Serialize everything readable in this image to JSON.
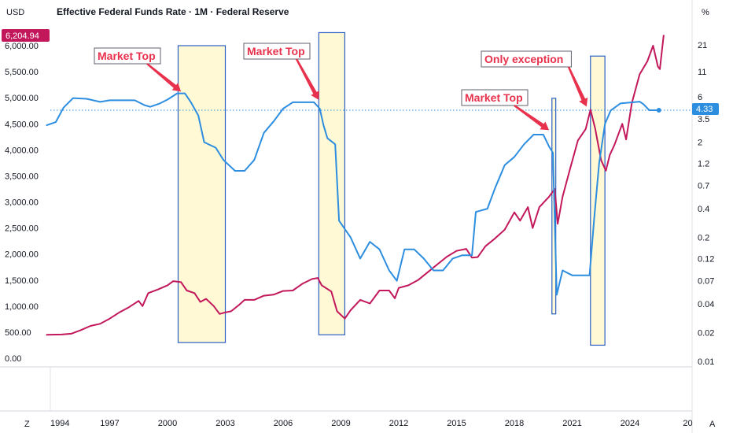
{
  "header": {
    "left_unit": "USD",
    "title": "Effective Federal Funds Rate · 1M · Federal Reserve",
    "right_unit": "%"
  },
  "badges": {
    "left_value": "6,204.94",
    "right_value": "4.33"
  },
  "bottom": {
    "left_icon": "Z",
    "right_icon": "A"
  },
  "colors": {
    "spx": "#c2185b",
    "fed": "#2d8ee0",
    "highlight_fill": "#fff9d6",
    "highlight_stroke": "#2a5fc4",
    "callout": "#e8314c"
  },
  "chart_data": {
    "type": "line",
    "title": "Effective Federal Funds Rate · 1M · Federal Reserve",
    "x_ticks": [
      "1994",
      "1997",
      "2000",
      "2003",
      "2006",
      "2009",
      "2012",
      "2015",
      "2018",
      "2021",
      "2024",
      "20"
    ],
    "left_axis": {
      "unit": "USD",
      "ticks": [
        "6,000.00",
        "5,500.00",
        "5,000.00",
        "4,500.00",
        "4,000.00",
        "3,500.00",
        "3,000.00",
        "2,500.00",
        "2,000.00",
        "1,500.00",
        "1,000.00",
        "500.00",
        "0.00"
      ],
      "range": [
        0,
        6000
      ]
    },
    "right_axis": {
      "unit": "%",
      "scale": "log",
      "ticks": [
        "21",
        "11",
        "6",
        "3.5",
        "2",
        "1.2",
        "0.7",
        "0.4",
        "0.2",
        "0.12",
        "0.07",
        "0.04",
        "0.02",
        "0.01"
      ]
    },
    "series": [
      {
        "axis": "left",
        "color": "#c2185b",
        "points": [
          [
            1993.7,
            450
          ],
          [
            1994.5,
            455
          ],
          [
            1995.0,
            470
          ],
          [
            1995.5,
            540
          ],
          [
            1996.0,
            620
          ],
          [
            1996.5,
            660
          ],
          [
            1997.0,
            760
          ],
          [
            1997.5,
            880
          ],
          [
            1998.0,
            980
          ],
          [
            1998.5,
            1100
          ],
          [
            1998.7,
            1000
          ],
          [
            1999.0,
            1250
          ],
          [
            1999.5,
            1320
          ],
          [
            2000.0,
            1400
          ],
          [
            2000.3,
            1480
          ],
          [
            2000.7,
            1460
          ],
          [
            2001.0,
            1300
          ],
          [
            2001.4,
            1250
          ],
          [
            2001.7,
            1080
          ],
          [
            2002.0,
            1140
          ],
          [
            2002.4,
            1000
          ],
          [
            2002.7,
            850
          ],
          [
            2003.0,
            880
          ],
          [
            2003.3,
            900
          ],
          [
            2003.7,
            1020
          ],
          [
            2004.0,
            1120
          ],
          [
            2004.5,
            1120
          ],
          [
            2005.0,
            1200
          ],
          [
            2005.5,
            1220
          ],
          [
            2006.0,
            1290
          ],
          [
            2006.5,
            1300
          ],
          [
            2007.0,
            1430
          ],
          [
            2007.5,
            1520
          ],
          [
            2007.8,
            1540
          ],
          [
            2008.0,
            1400
          ],
          [
            2008.5,
            1280
          ],
          [
            2008.8,
            900
          ],
          [
            2009.2,
            760
          ],
          [
            2009.5,
            920
          ],
          [
            2010.0,
            1120
          ],
          [
            2010.5,
            1050
          ],
          [
            2011.0,
            1300
          ],
          [
            2011.5,
            1300
          ],
          [
            2011.8,
            1150
          ],
          [
            2012.0,
            1350
          ],
          [
            2012.5,
            1400
          ],
          [
            2013.0,
            1500
          ],
          [
            2013.5,
            1650
          ],
          [
            2014.0,
            1800
          ],
          [
            2014.5,
            1950
          ],
          [
            2015.0,
            2060
          ],
          [
            2015.5,
            2100
          ],
          [
            2015.8,
            1930
          ],
          [
            2016.1,
            1940
          ],
          [
            2016.5,
            2150
          ],
          [
            2017.0,
            2300
          ],
          [
            2017.5,
            2470
          ],
          [
            2018.0,
            2800
          ],
          [
            2018.3,
            2640
          ],
          [
            2018.7,
            2900
          ],
          [
            2018.95,
            2500
          ],
          [
            2019.3,
            2900
          ],
          [
            2019.8,
            3100
          ],
          [
            2020.1,
            3250
          ],
          [
            2020.25,
            2580
          ],
          [
            2020.5,
            3100
          ],
          [
            2020.9,
            3650
          ],
          [
            2021.3,
            4180
          ],
          [
            2021.7,
            4400
          ],
          [
            2021.95,
            4770
          ],
          [
            2022.2,
            4400
          ],
          [
            2022.5,
            3800
          ],
          [
            2022.75,
            3600
          ],
          [
            2022.95,
            3900
          ],
          [
            2023.2,
            4100
          ],
          [
            2023.6,
            4500
          ],
          [
            2023.8,
            4200
          ],
          [
            2024.1,
            4900
          ],
          [
            2024.5,
            5450
          ],
          [
            2024.9,
            5700
          ],
          [
            2025.2,
            6000
          ],
          [
            2025.45,
            5600
          ],
          [
            2025.55,
            5550
          ],
          [
            2025.75,
            6204.94
          ]
        ]
      },
      {
        "axis": "right",
        "color": "#2d8ee0",
        "points": [
          [
            1993.7,
            3.0
          ],
          [
            1994.2,
            3.25
          ],
          [
            1994.6,
            4.6
          ],
          [
            1995.1,
            5.8
          ],
          [
            1995.8,
            5.7
          ],
          [
            1996.5,
            5.3
          ],
          [
            1997.0,
            5.5
          ],
          [
            1997.8,
            5.5
          ],
          [
            1998.3,
            5.5
          ],
          [
            1998.8,
            4.9
          ],
          [
            1999.1,
            4.7
          ],
          [
            1999.6,
            5.1
          ],
          [
            2000.0,
            5.6
          ],
          [
            2000.5,
            6.5
          ],
          [
            2000.9,
            6.5
          ],
          [
            2001.2,
            5.3
          ],
          [
            2001.6,
            3.8
          ],
          [
            2001.9,
            2.0
          ],
          [
            2002.5,
            1.75
          ],
          [
            2002.9,
            1.3
          ],
          [
            2003.5,
            1.0
          ],
          [
            2004.0,
            1.0
          ],
          [
            2004.5,
            1.3
          ],
          [
            2005.0,
            2.5
          ],
          [
            2005.5,
            3.3
          ],
          [
            2006.0,
            4.5
          ],
          [
            2006.5,
            5.25
          ],
          [
            2007.0,
            5.25
          ],
          [
            2007.6,
            5.25
          ],
          [
            2007.9,
            4.5
          ],
          [
            2008.1,
            3.0
          ],
          [
            2008.3,
            2.2
          ],
          [
            2008.7,
            1.9
          ],
          [
            2008.9,
            0.3
          ],
          [
            2009.5,
            0.2
          ],
          [
            2010.0,
            0.12
          ],
          [
            2010.5,
            0.18
          ],
          [
            2011.0,
            0.15
          ],
          [
            2011.5,
            0.09
          ],
          [
            2011.9,
            0.07
          ],
          [
            2012.3,
            0.15
          ],
          [
            2012.8,
            0.15
          ],
          [
            2013.3,
            0.12
          ],
          [
            2013.8,
            0.09
          ],
          [
            2014.3,
            0.09
          ],
          [
            2014.8,
            0.12
          ],
          [
            2015.3,
            0.13
          ],
          [
            2015.8,
            0.13
          ],
          [
            2016.0,
            0.37
          ],
          [
            2016.6,
            0.4
          ],
          [
            2017.0,
            0.66
          ],
          [
            2017.5,
            1.15
          ],
          [
            2018.0,
            1.4
          ],
          [
            2018.5,
            1.9
          ],
          [
            2019.0,
            2.4
          ],
          [
            2019.5,
            2.4
          ],
          [
            2019.8,
            1.8
          ],
          [
            2020.0,
            1.55
          ],
          [
            2020.2,
            0.05
          ],
          [
            2020.5,
            0.09
          ],
          [
            2021.0,
            0.08
          ],
          [
            2021.5,
            0.08
          ],
          [
            2021.9,
            0.08
          ],
          [
            2022.15,
            0.33
          ],
          [
            2022.4,
            1.2
          ],
          [
            2022.7,
            3.1
          ],
          [
            2023.0,
            4.3
          ],
          [
            2023.5,
            5.1
          ],
          [
            2024.5,
            5.33
          ],
          [
            2024.7,
            5.0
          ],
          [
            2025.0,
            4.33
          ],
          [
            2025.5,
            4.33
          ]
        ]
      }
    ],
    "highlights": [
      {
        "x0": 2000.55,
        "x1": 2003.0,
        "y0": 300,
        "y1": 6000
      },
      {
        "x0": 2007.85,
        "x1": 2009.2,
        "y0": 450,
        "y1": 6250
      },
      {
        "x0": 2019.95,
        "x1": 2020.15,
        "y0": 850,
        "y1": 4990
      },
      {
        "x0": 2021.95,
        "x1": 2022.7,
        "y0": 250,
        "y1": 5800
      }
    ],
    "annotations": [
      {
        "text": "Market Top",
        "target": [
          2000.7,
          5120
        ]
      },
      {
        "text": "Market Top",
        "target": [
          2007.85,
          4960
        ]
      },
      {
        "text": "Only exception",
        "target": [
          2021.75,
          4830
        ]
      },
      {
        "text": "Market Top",
        "target": [
          2019.8,
          4380
        ]
      }
    ],
    "hline": {
      "axis": "right",
      "value": 4.33
    }
  }
}
